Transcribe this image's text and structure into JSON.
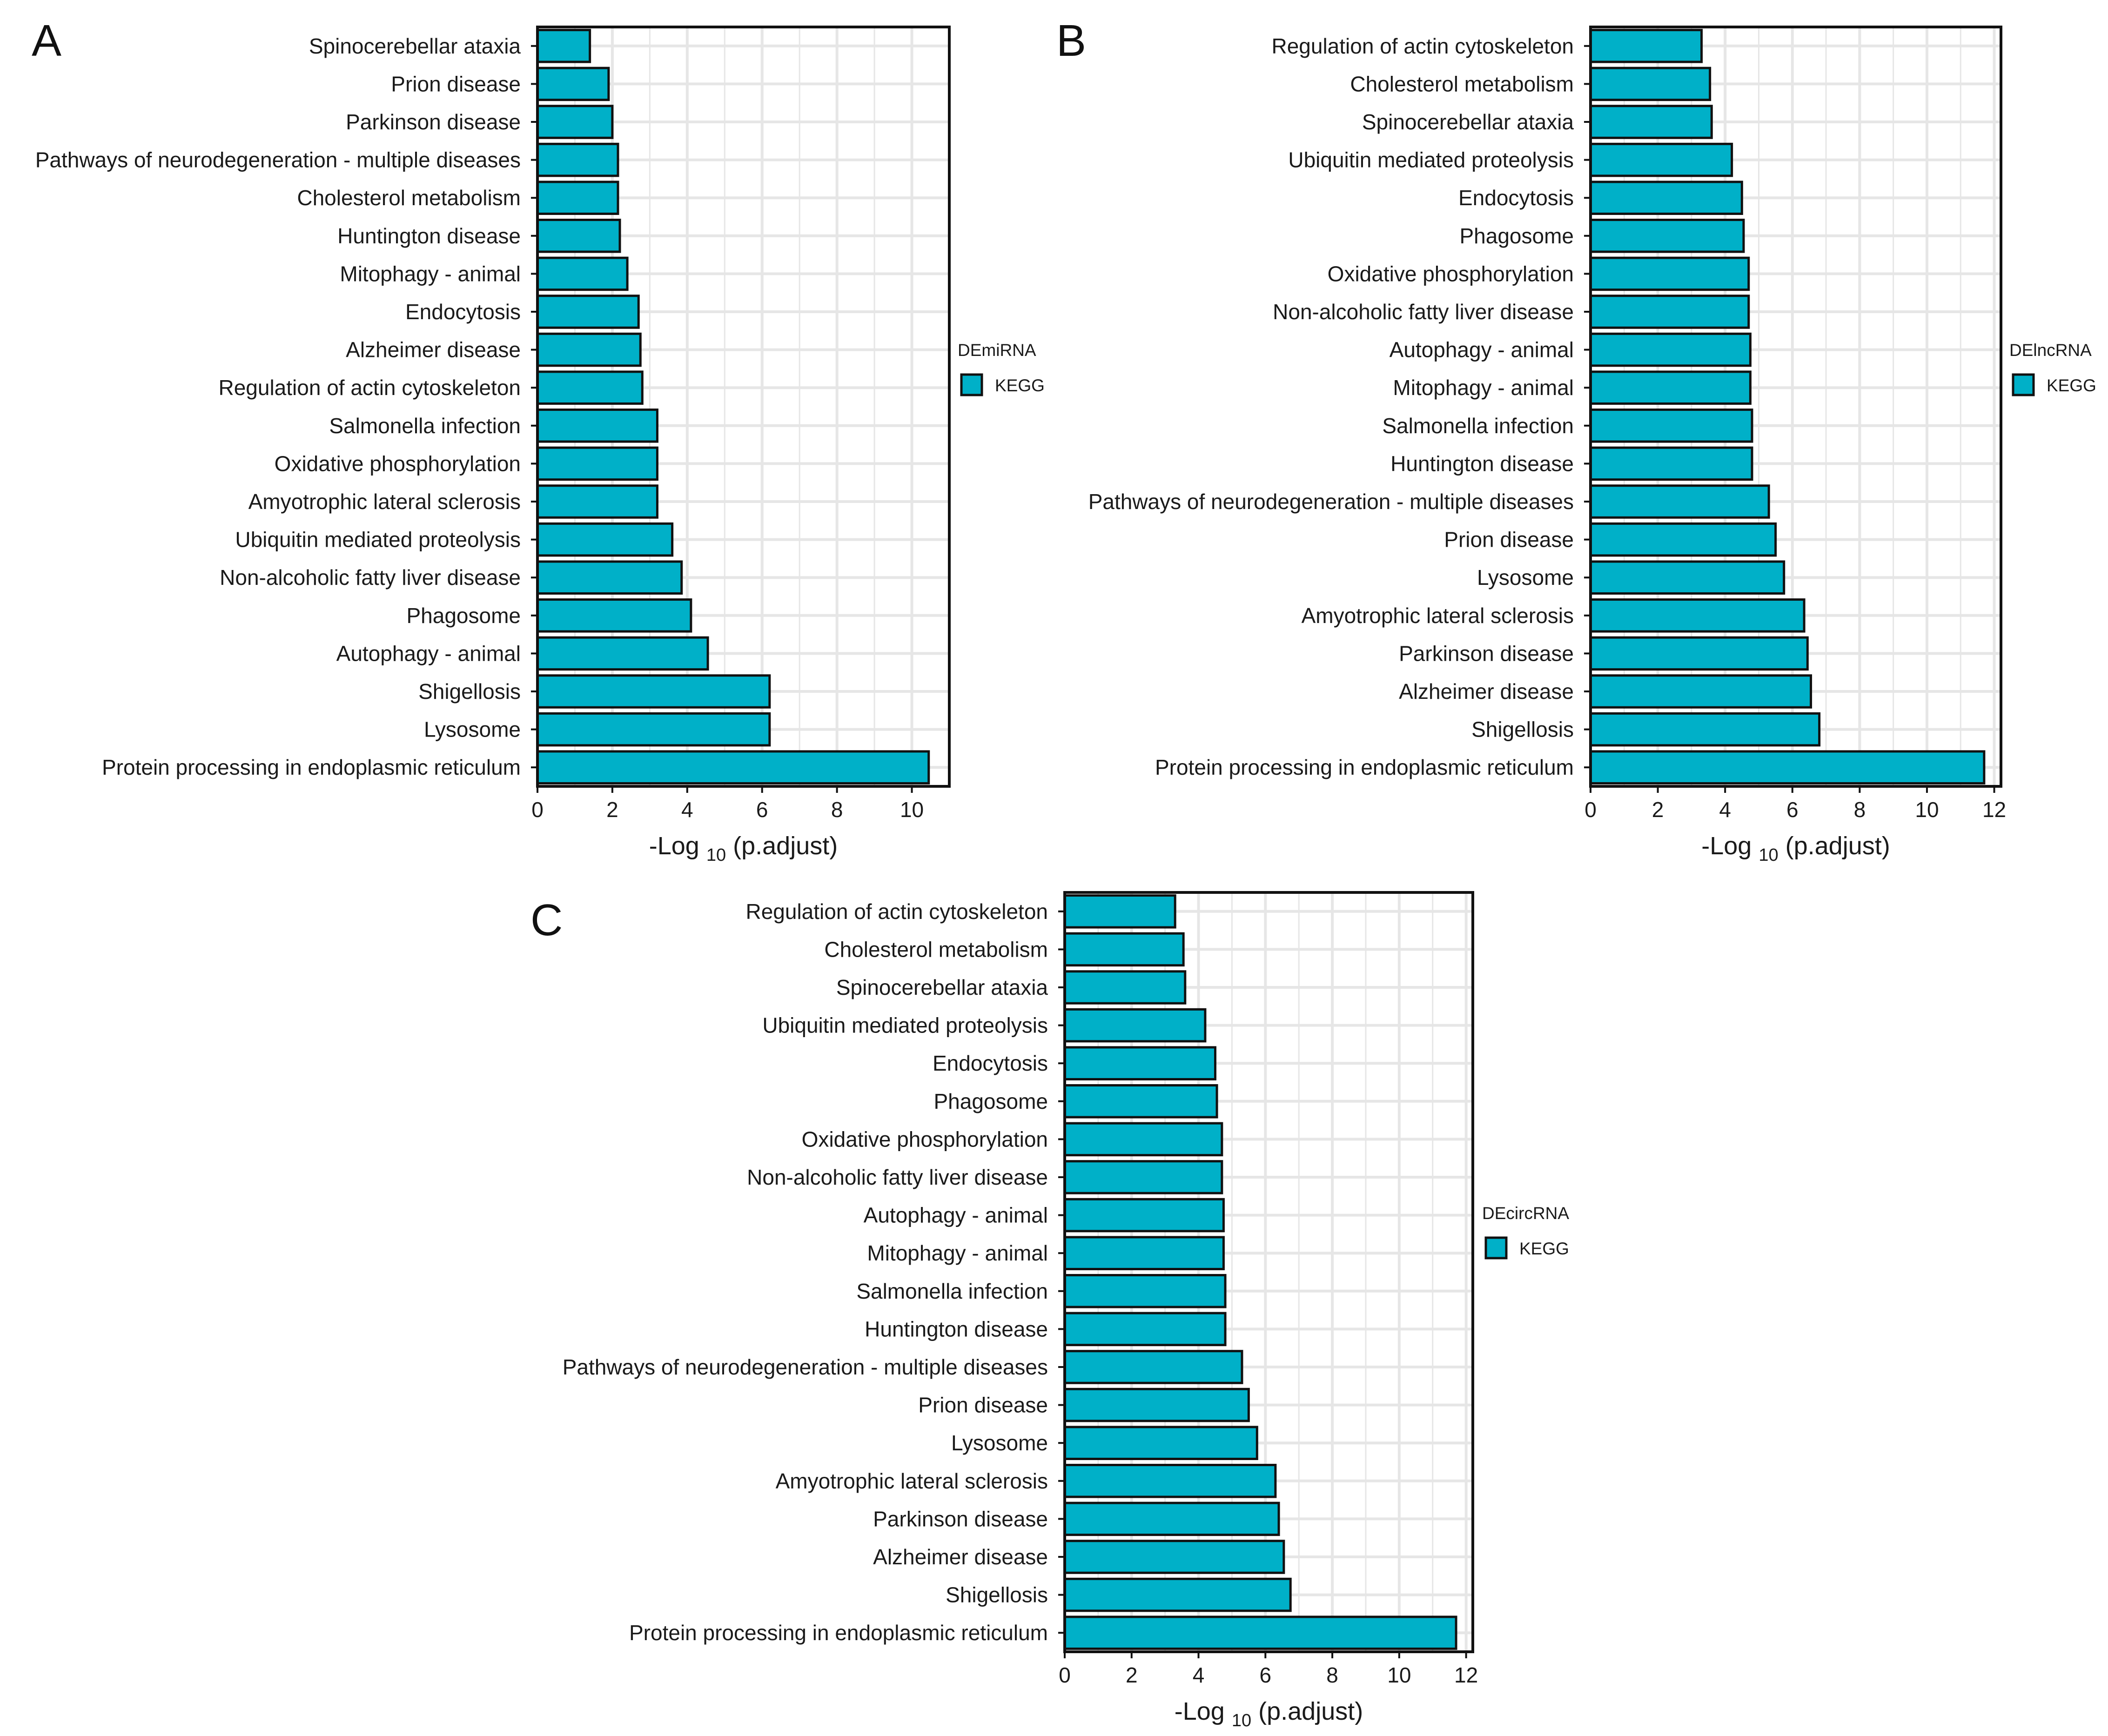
{
  "colors": {
    "bar_fill": "#00B0C8",
    "bar_stroke": "#111111",
    "grid": "#E6E6E6",
    "frame": "#111111"
  },
  "chart_data": [
    {
      "panel": "A",
      "type": "bar",
      "orientation": "horizontal",
      "xlabel_prefix": "-Log",
      "xlabel_sub": "10",
      "xlabel_suffix": "(p.adjust)",
      "xlim": [
        0,
        11
      ],
      "xticks": [
        0,
        2,
        4,
        6,
        8,
        10
      ],
      "legend_title": "DEmiRNA",
      "legend_label": "KEGG",
      "legend_position": "right",
      "categories": [
        "Spinocerebellar ataxia",
        "Prion disease",
        "Parkinson disease",
        "Pathways of neurodegeneration - multiple diseases",
        "Cholesterol metabolism",
        "Huntington disease",
        "Mitophagy - animal",
        "Endocytosis",
        "Alzheimer disease",
        "Regulation of actin cytoskeleton",
        "Salmonella infection",
        "Oxidative phosphorylation",
        "Amyotrophic lateral sclerosis",
        "Ubiquitin mediated proteolysis",
        "Non-alcoholic fatty liver disease",
        "Phagosome",
        "Autophagy - animal",
        "Shigellosis",
        "Lysosome",
        "Protein processing in endoplasmic reticulum"
      ],
      "values": [
        1.4,
        1.9,
        2.0,
        2.15,
        2.15,
        2.2,
        2.4,
        2.7,
        2.75,
        2.8,
        3.2,
        3.2,
        3.2,
        3.6,
        3.85,
        4.1,
        4.55,
        6.2,
        6.2,
        10.45
      ]
    },
    {
      "panel": "B",
      "type": "bar",
      "orientation": "horizontal",
      "xlabel_prefix": "-Log",
      "xlabel_sub": "10",
      "xlabel_suffix": "(p.adjust)",
      "xlim": [
        0,
        12.2
      ],
      "xticks": [
        0,
        2,
        4,
        6,
        8,
        10,
        12
      ],
      "legend_title": "DElncRNA",
      "legend_label": "KEGG",
      "legend_position": "right",
      "categories": [
        "Regulation of actin cytoskeleton",
        "Cholesterol metabolism",
        "Spinocerebellar ataxia",
        "Ubiquitin mediated proteolysis",
        "Endocytosis",
        "Phagosome",
        "Oxidative phosphorylation",
        "Non-alcoholic fatty liver disease",
        "Autophagy - animal",
        "Mitophagy - animal",
        "Salmonella infection",
        "Huntington disease",
        "Pathways of neurodegeneration - multiple diseases",
        "Prion disease",
        "Lysosome",
        "Amyotrophic lateral sclerosis",
        "Parkinson disease",
        "Alzheimer disease",
        "Shigellosis",
        "Protein processing in endoplasmic reticulum"
      ],
      "values": [
        3.3,
        3.55,
        3.6,
        4.2,
        4.5,
        4.55,
        4.7,
        4.7,
        4.75,
        4.75,
        4.8,
        4.8,
        5.3,
        5.5,
        5.75,
        6.35,
        6.45,
        6.55,
        6.8,
        11.7
      ]
    },
    {
      "panel": "C",
      "type": "bar",
      "orientation": "horizontal",
      "xlabel_prefix": "-Log",
      "xlabel_sub": "10",
      "xlabel_suffix": "(p.adjust)",
      "xlim": [
        0,
        12.2
      ],
      "xticks": [
        0,
        2,
        4,
        6,
        8,
        10,
        12
      ],
      "legend_title": "DEcircRNA",
      "legend_label": "KEGG",
      "legend_position": "right",
      "categories": [
        "Regulation of actin cytoskeleton",
        "Cholesterol metabolism",
        "Spinocerebellar ataxia",
        "Ubiquitin mediated proteolysis",
        "Endocytosis",
        "Phagosome",
        "Oxidative phosphorylation",
        "Non-alcoholic fatty liver disease",
        "Autophagy - animal",
        "Mitophagy - animal",
        "Salmonella infection",
        "Huntington disease",
        "Pathways of neurodegeneration - multiple diseases",
        "Prion disease",
        "Lysosome",
        "Amyotrophic lateral sclerosis",
        "Parkinson disease",
        "Alzheimer disease",
        "Shigellosis",
        "Protein processing in endoplasmic reticulum"
      ],
      "values": [
        3.3,
        3.55,
        3.6,
        4.2,
        4.5,
        4.55,
        4.7,
        4.7,
        4.75,
        4.75,
        4.8,
        4.8,
        5.3,
        5.5,
        5.75,
        6.3,
        6.4,
        6.55,
        6.75,
        11.7
      ]
    }
  ]
}
